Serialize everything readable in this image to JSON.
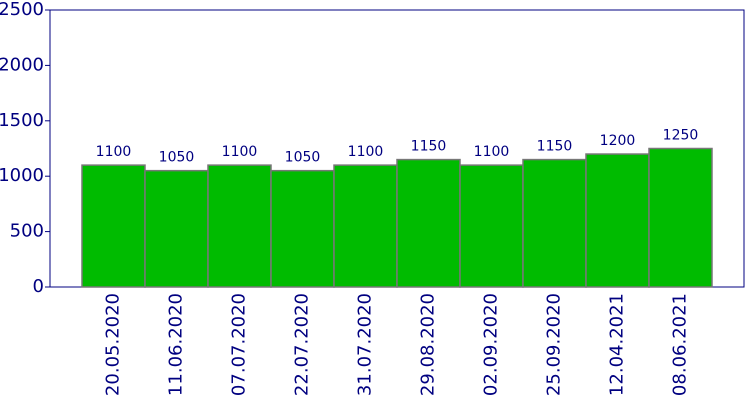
{
  "chart_data": {
    "type": "bar",
    "categories": [
      "20.05.2020",
      "11.06.2020",
      "07.07.2020",
      "22.07.2020",
      "31.07.2020",
      "29.08.2020",
      "02.09.2020",
      "25.09.2020",
      "12.04.2021",
      "08.06.2021"
    ],
    "values": [
      1100,
      1050,
      1100,
      1050,
      1100,
      1150,
      1100,
      1150,
      1200,
      1250
    ],
    "color": "#00bb00",
    "ylim": [
      0,
      2500
    ],
    "yticks": [
      0,
      500,
      1000,
      1500,
      2000,
      2500
    ],
    "grid": false
  }
}
